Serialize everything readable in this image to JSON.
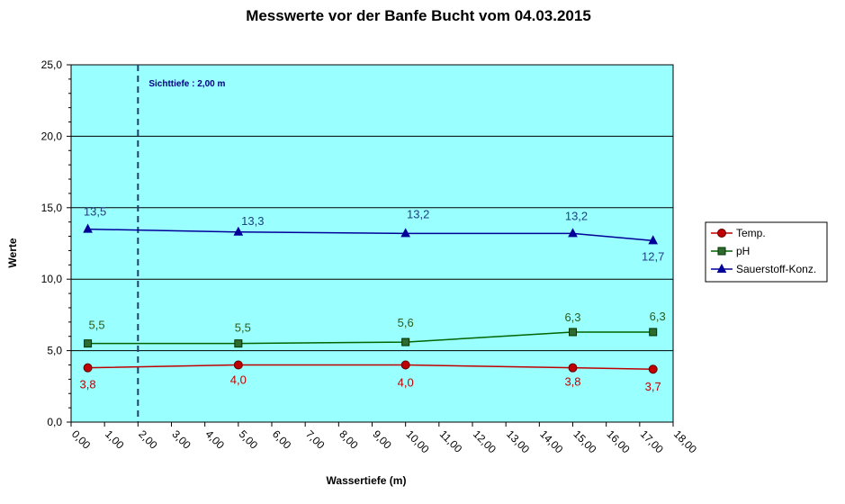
{
  "chart_data": {
    "type": "line",
    "title": "Messwerte vor der Banfe Bucht vom 04.03.2015",
    "xlabel": "Wassertiefe (m)",
    "ylabel": "Werte",
    "xlim": [
      0,
      18
    ],
    "ylim": [
      0,
      25
    ],
    "x_ticks": [
      "0,00",
      "1,00",
      "2,00",
      "3,00",
      "4,00",
      "5,00",
      "6,00",
      "7,00",
      "8,00",
      "9,00",
      "10,00",
      "11,00",
      "12,00",
      "13,00",
      "14,00",
      "15,00",
      "16,00",
      "17,00",
      "18,00"
    ],
    "y_ticks": [
      "0,0",
      "5,0",
      "10,0",
      "15,0",
      "20,0",
      "25,0"
    ],
    "grid": "horizontal major",
    "legend_position": "right",
    "plot_background": "#99FFFF",
    "reference_line": {
      "x": 2.0,
      "label": "Sichttiefe : 2,00 m",
      "color": "#1F3F6F"
    },
    "series": [
      {
        "name": "Temp.",
        "color": "#C00000",
        "marker": "circle",
        "x": [
          0.5,
          5.0,
          10.0,
          15.0,
          17.4
        ],
        "y": [
          3.8,
          4.0,
          4.0,
          3.8,
          3.7
        ],
        "labels": [
          "3,8",
          "4,0",
          "4,0",
          "3,8",
          "3,7"
        ]
      },
      {
        "name": "pH",
        "color": "#006400",
        "label_color": "#2E5A1C",
        "marker": "square",
        "x": [
          0.5,
          5.0,
          10.0,
          15.0,
          17.4
        ],
        "y": [
          5.5,
          5.5,
          5.6,
          6.3,
          6.3
        ],
        "labels": [
          "5,5",
          "5,5",
          "5,6",
          "6,3",
          "6,3"
        ]
      },
      {
        "name": "Sauerstoff-Konz.",
        "color": "#000099",
        "label_color": "#1F3F7F",
        "marker": "triangle",
        "x": [
          0.5,
          5.0,
          10.0,
          15.0,
          17.4
        ],
        "y": [
          13.5,
          13.3,
          13.2,
          13.2,
          12.7
        ],
        "labels": [
          "13,5",
          "13,3",
          "13,2",
          "13,2",
          "12,7"
        ]
      }
    ]
  }
}
